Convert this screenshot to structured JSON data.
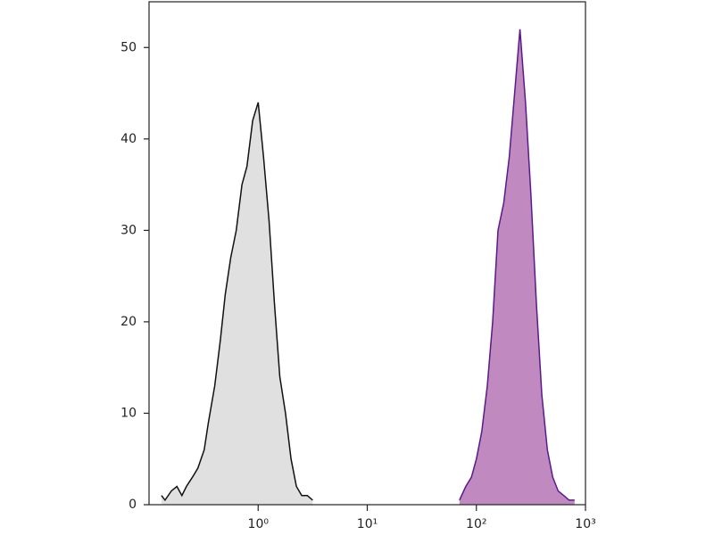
{
  "chart_data": {
    "type": "area",
    "xscale": "log",
    "xlim": [
      0.1,
      1000
    ],
    "ylim": [
      0,
      55
    ],
    "xticks": [
      {
        "value": 1,
        "label": "10⁰"
      },
      {
        "value": 10,
        "label": "10¹"
      },
      {
        "value": 100,
        "label": "10²"
      },
      {
        "value": 1000,
        "label": "10³"
      }
    ],
    "yticks": [
      0,
      10,
      20,
      30,
      40,
      50
    ],
    "series": [
      {
        "color": "#111111",
        "fill": "#e0e0e0",
        "x": [
          0.13,
          0.14,
          0.16,
          0.18,
          0.2,
          0.22,
          0.25,
          0.28,
          0.32,
          0.35,
          0.4,
          0.45,
          0.5,
          0.56,
          0.63,
          0.71,
          0.79,
          0.89,
          1,
          1.12,
          1.26,
          1.41,
          1.58,
          1.78,
          2,
          2.24,
          2.51,
          2.82,
          3.16
        ],
        "values": [
          1,
          0.5,
          1.5,
          2,
          1,
          2,
          3,
          4,
          6,
          9,
          13,
          18,
          23,
          27,
          30,
          35,
          37,
          42,
          44,
          38,
          31,
          22,
          14,
          10,
          5,
          2,
          1,
          1,
          0.5
        ]
      },
      {
        "color": "#5a1a8a",
        "fill": "#c08ac0",
        "x": [
          70,
          80,
          90,
          100,
          112,
          126,
          141,
          158,
          178,
          200,
          224,
          251,
          282,
          316,
          355,
          398,
          447,
          501,
          562,
          631,
          708,
          794
        ],
        "values": [
          0.5,
          2,
          3,
          5,
          8,
          13,
          20,
          30,
          33,
          38,
          45,
          52,
          44,
          34,
          22,
          12,
          6,
          3,
          1.5,
          1,
          0.5,
          0.5
        ]
      }
    ]
  }
}
